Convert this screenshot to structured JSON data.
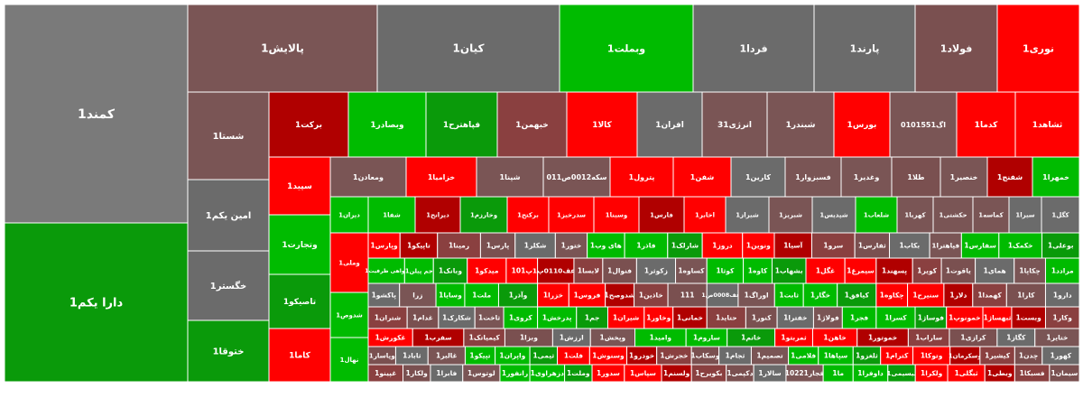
{
  "chart_data": {
    "type": "treemap",
    "title": "",
    "color_scale": {
      "up": "#00bb00",
      "strong_up": "#0a9a0a",
      "flat": "#6b6b6b",
      "down": "#7a5050",
      "strong_down": "#ff0000",
      "dark_down": "#b00000"
    },
    "tiles": [
      {
        "label": "کمند1",
        "color": "#7a7a7a"
      },
      {
        "label": "دارا یکم1",
        "color": "#0a9a0a"
      },
      {
        "label": "پالایش1",
        "color": "#7a5555"
      },
      {
        "label": "کیان1",
        "color": "#6b6b6b"
      },
      {
        "label": "وبملت1",
        "color": "#00bb00"
      },
      {
        "label": "فردا1",
        "color": "#6b6b6b"
      },
      {
        "label": "پارند1",
        "color": "#6b6b6b"
      },
      {
        "label": "فولاد1",
        "color": "#7a5050"
      },
      {
        "label": "نوری1",
        "color": "#ff0000"
      },
      {
        "label": "شستا1",
        "color": "#7a5555"
      },
      {
        "label": "امین یکم1",
        "color": "#6b6b6b"
      },
      {
        "label": "خگستر1",
        "color": "#6b6b6b"
      },
      {
        "label": "ختوقا1",
        "color": "#0a9a0a"
      },
      {
        "label": "برکت1",
        "color": "#b00000"
      },
      {
        "label": "وبصادر1",
        "color": "#00bb00"
      },
      {
        "label": "فپاهترح1",
        "color": "#0a9a0a"
      },
      {
        "label": "خبهمن1",
        "color": "#8a4040"
      },
      {
        "label": "کالا1",
        "color": "#ff0000"
      },
      {
        "label": "افران1",
        "color": "#6b6b6b"
      },
      {
        "label": "انرژی31",
        "color": "#7a5555"
      },
      {
        "label": "شبندر1",
        "color": "#7a5555"
      },
      {
        "label": "بورس1",
        "color": "#ff0000"
      },
      {
        "label": "اگ0101551",
        "color": "#7a5555"
      },
      {
        "label": "کدما1",
        "color": "#ff0000"
      },
      {
        "label": "ثشاهد1",
        "color": "#ff0000"
      },
      {
        "label": "سپید1",
        "color": "#ff0000"
      },
      {
        "label": "وتجارت1",
        "color": "#00bb00"
      },
      {
        "label": "تاصیکو1",
        "color": "#0a9a0a"
      },
      {
        "label": "کاما1",
        "color": "#ff0000"
      },
      {
        "label": "ومعادن1",
        "color": "#7a5555"
      },
      {
        "label": "خزامیا1",
        "color": "#ff0000"
      },
      {
        "label": "شپنا1",
        "color": "#7a5555"
      },
      {
        "label": "سکه0012ص011",
        "color": "#7a5555"
      },
      {
        "label": "پترول1",
        "color": "#ff0000"
      },
      {
        "label": "شفن1",
        "color": "#ff0000"
      },
      {
        "label": "کارین1",
        "color": "#6b6b6b"
      },
      {
        "label": "فسبزوار1",
        "color": "#7a5555"
      },
      {
        "label": "وغدیر1",
        "color": "#7a5555"
      },
      {
        "label": "طلا1",
        "color": "#7a5050"
      },
      {
        "label": "خنصیر1",
        "color": "#7a5555"
      },
      {
        "label": "شفنج1",
        "color": "#b00000"
      },
      {
        "label": "خمهرا1",
        "color": "#00bb00"
      },
      {
        "label": "دیران1",
        "color": "#00bb00"
      },
      {
        "label": "شفا1",
        "color": "#00bb00"
      },
      {
        "label": "دیرانح1",
        "color": "#b00000"
      },
      {
        "label": "وخارزم1",
        "color": "#0a9a0a"
      },
      {
        "label": "برکتح1",
        "color": "#ff0000"
      },
      {
        "label": "سدرخیز1",
        "color": "#ff0000"
      },
      {
        "label": "وسینا1",
        "color": "#ff0000"
      },
      {
        "label": "فارس1",
        "color": "#b00000"
      },
      {
        "label": "اخابر1",
        "color": "#ff0000"
      },
      {
        "label": "شیراز1",
        "color": "#6b6b6b"
      },
      {
        "label": "شبریز1",
        "color": "#7a5555"
      },
      {
        "label": "شپدیس1",
        "color": "#6b6b6b"
      },
      {
        "label": "شلعاب1",
        "color": "#00bb00"
      },
      {
        "label": "کهربا1",
        "color": "#7a5555"
      },
      {
        "label": "حکشتی1",
        "color": "#7a5555"
      },
      {
        "label": "کماسه1",
        "color": "#7a5555"
      },
      {
        "label": "سیرا1",
        "color": "#6b6b6b"
      },
      {
        "label": "کگل1",
        "color": "#6b6b6b"
      },
      {
        "label": "وملی1",
        "color": "#ff0000"
      },
      {
        "label": "شدوص1",
        "color": "#00bb00"
      },
      {
        "label": "نهال1",
        "color": "#00bb00"
      }
    ],
    "small_labels": [
      "وپارس1",
      "تاپیکو1",
      "رمینا1",
      "پارس1",
      "شکلر1",
      "ختور1",
      "های وب1",
      "فاذر1",
      "شارلک1",
      "دروز1",
      "ونوین1",
      "آسیا1",
      "سرو1",
      "ثفارس1",
      "بکاب1",
      "فپاهترا1",
      "سفارس1",
      "خکمک1",
      "بوعلی1",
      "گواهی ظرفیت1",
      "جم پیلن1",
      "وبانک1",
      "میدکو1",
      "101پ",
      "زعف0110پ1",
      "لابسا1",
      "فنوال1",
      "زکوثر1",
      "کساوه1",
      "کوثا1",
      "کاوه1",
      "بشهاب1",
      "غگل1",
      "سیمرغ1",
      "پسهند1",
      "کویر1",
      "یاقوت1",
      "همای1",
      "چکاپا1",
      "مرادد1",
      "پاکشو1",
      "زرا",
      "وسایا1",
      "ملت1",
      "وآذر1",
      "خزرا1",
      "فروس1",
      "شدوصح1",
      "خاذین1",
      "111",
      "زعف0008ص1",
      "اوراگ1",
      "ثابت1",
      "خگار1",
      "کیافق1",
      "چکاوه1",
      "سنیرح1",
      "دلار1",
      "کهمدا1",
      "کارا1",
      "دارو1",
      "شتران1",
      "غدام1",
      "شکارک1",
      "ثاخت1",
      "کروی1",
      "پدرخش1",
      "جم1",
      "شیران1",
      "وخاور1",
      "خمانی1",
      "حتاید1",
      "کنور1",
      "خفترا1",
      "فولاژ1",
      "فجر1",
      "کسرا1",
      "فوساژ1",
      "خمونوپ1",
      "ثبهساژ1",
      "وبست1",
      "وکار1",
      "غکورش1",
      "سفرب1",
      "کیمیاتک1",
      "وبزا1",
      "ارزش1",
      "وپخش1",
      "وامید1",
      "ساروم1",
      "خاتم1",
      "ثمربتو1",
      "خاهن1",
      "خموتور1",
      "ساراب1",
      "کرازی1",
      "کگاز1",
      "ختایر1",
      "وپاسار1",
      "ثاباد1",
      "غالبر1",
      "تپیکو1",
      "واپران1",
      "ثیمی1",
      "فلت1",
      "وسنوش1",
      "خودرو1",
      "خجرش1",
      "وسکاب1",
      "ثجام1",
      "تصمیم1",
      "فلامی1",
      "سپاها1",
      "ثلغزو1",
      "کترام1",
      "وتوکا1",
      "وسکرمان1",
      "کیشیر1",
      "چدن1",
      "کهور1",
      "غپینو1",
      "ولکار1",
      "فابرا1",
      "لوتوس1",
      "رانفور1",
      "دزهراوی1",
      "وملت1",
      "سدور1",
      "سپاس1",
      "ولسنم1",
      "بکویرح1",
      "دکپمی1",
      "سالار1",
      "فجار10221",
      "ما1",
      "داوفرا1",
      "بیسیمی1",
      "ولکرا1",
      "ثبگلی1",
      "وبطی1",
      "فسبکا1",
      "سیمان1"
    ]
  }
}
